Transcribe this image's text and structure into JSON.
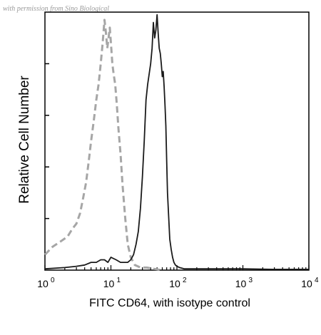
{
  "chart_data": {
    "type": "line",
    "watermark": "with permission from Sino Biological",
    "xlabel": "FITC CD64, with isotype control",
    "ylabel": "Relative Cell Number",
    "x_scale": "log",
    "xlim": [
      1,
      10000
    ],
    "ylim": [
      0,
      100
    ],
    "x_ticks": [
      {
        "value": 1,
        "base": "10",
        "exp": "0"
      },
      {
        "value": 10,
        "base": "10",
        "exp": "1"
      },
      {
        "value": 100,
        "base": "10",
        "exp": "2"
      },
      {
        "value": 1000,
        "base": "10",
        "exp": "3"
      },
      {
        "value": 10000,
        "base": "10",
        "exp": "4"
      }
    ],
    "series": [
      {
        "style": "dashed",
        "color": "#a6a6a6",
        "x": [
          1,
          1.3,
          1.7,
          2.2,
          2.6,
          3.0,
          3.4,
          3.8,
          4.2,
          4.6,
          5.0,
          5.5,
          6.0,
          6.5,
          7.0,
          7.5,
          8.0,
          8.4,
          8.8,
          9.2,
          9.6,
          10.0,
          10.5,
          11.0,
          11.6,
          12.3,
          13.0,
          14.0,
          15.0,
          16.5,
          18.0,
          20.0,
          23.0,
          28.0,
          35.0,
          45.0,
          60.0
        ],
        "y": [
          6,
          9,
          11,
          13,
          16,
          18,
          22,
          28,
          34,
          42,
          50,
          58,
          66,
          72,
          80,
          88,
          97,
          92,
          86,
          90,
          94,
          88,
          80,
          76,
          72,
          64,
          55,
          45,
          33,
          20,
          10,
          5,
          2,
          1,
          1,
          0.5,
          0
        ]
      },
      {
        "style": "solid",
        "color": "#1a1a1a",
        "x": [
          1,
          2,
          3,
          4,
          5,
          6,
          7,
          8,
          9,
          10,
          12,
          14,
          16,
          18,
          20,
          22,
          24,
          26,
          28,
          30,
          32,
          34,
          36,
          38,
          40,
          42,
          44,
          46,
          48,
          50,
          52,
          54,
          56,
          58,
          60,
          62,
          64,
          66,
          68,
          70,
          72,
          75,
          78,
          82,
          86,
          90,
          95,
          100,
          110,
          130,
          160,
          200,
          300,
          500,
          1000,
          3000,
          10000
        ],
        "y": [
          0.5,
          1,
          1.5,
          2,
          3,
          3,
          4,
          4,
          3,
          5,
          4,
          3,
          3,
          3,
          4,
          6,
          10,
          15,
          24,
          36,
          50,
          66,
          72,
          76,
          80,
          86,
          96,
          90,
          93,
          99,
          92,
          86,
          84,
          80,
          75,
          77,
          71,
          64,
          56,
          42,
          30,
          21,
          12,
          8,
          5,
          3,
          2,
          1.5,
          1,
          0.5,
          0.5,
          0.5,
          0.5,
          0.5,
          0.5,
          0.3,
          0.3
        ]
      }
    ]
  }
}
